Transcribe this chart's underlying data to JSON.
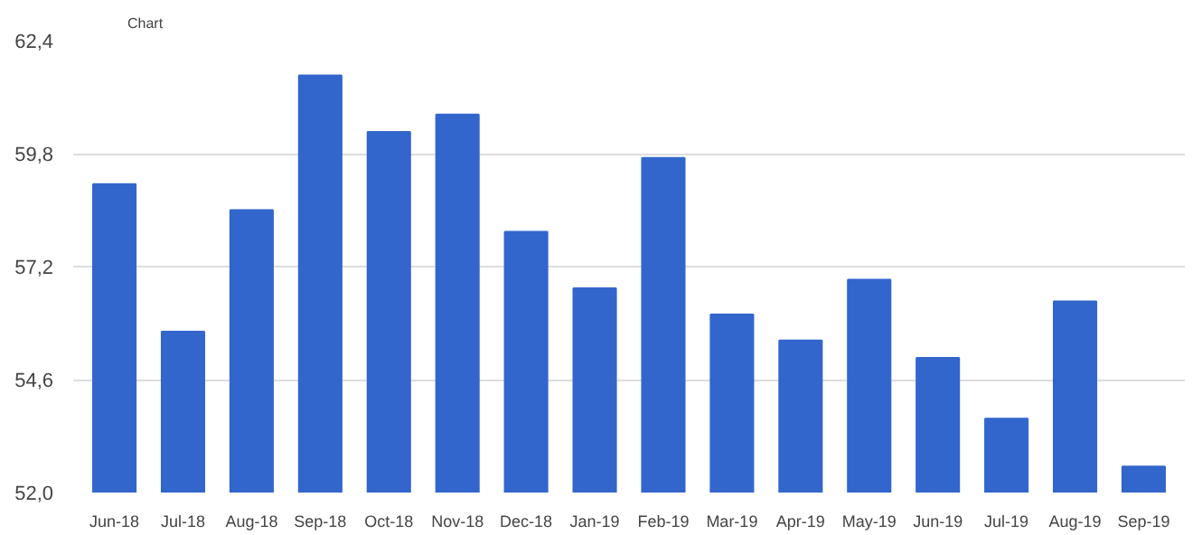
{
  "chart_data": {
    "type": "bar",
    "title": "Chart",
    "categories": [
      "Jun-18",
      "Jul-18",
      "Aug-18",
      "Sep-18",
      "Oct-18",
      "Nov-18",
      "Dec-18",
      "Jan-19",
      "Feb-19",
      "Mar-19",
      "Apr-19",
      "May-19",
      "Jun-19",
      "Jul-19",
      "Aug-19",
      "Sep-19"
    ],
    "values": [
      59.1,
      55.7,
      58.5,
      61.6,
      60.3,
      60.7,
      58.0,
      56.7,
      59.7,
      56.1,
      55.5,
      56.9,
      55.1,
      53.7,
      56.4,
      52.6
    ],
    "color": "#3366cc",
    "ylim": [
      52.0,
      62.4
    ],
    "yticks": [
      {
        "value": 52.0,
        "label": "52,0"
      },
      {
        "value": 54.6,
        "label": "54,6"
      },
      {
        "value": 57.2,
        "label": "57,2"
      },
      {
        "value": 59.8,
        "label": "59,8"
      },
      {
        "value": 62.4,
        "label": "62,4"
      }
    ],
    "grid": "y"
  }
}
